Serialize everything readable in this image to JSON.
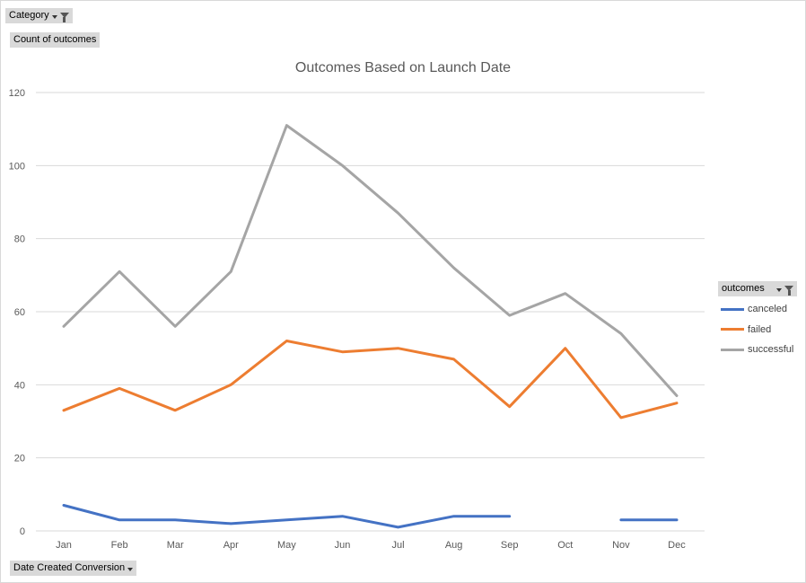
{
  "pivot_buttons": {
    "category": "Category",
    "count": "Count of outcomes",
    "date": "Date Created Conversion",
    "outcomes": "outcomes"
  },
  "chart_data": {
    "type": "line",
    "title": "Outcomes Based on Launch Date",
    "xlabel": "",
    "ylabel": "",
    "categories": [
      "Jan",
      "Feb",
      "Mar",
      "Apr",
      "May",
      "Jun",
      "Jul",
      "Aug",
      "Sep",
      "Oct",
      "Nov",
      "Dec"
    ],
    "ylim": [
      0,
      120
    ],
    "yticks": [
      0,
      20,
      40,
      60,
      80,
      100,
      120
    ],
    "grid": true,
    "legend_position": "right",
    "legend_title": "outcomes",
    "series": [
      {
        "name": "canceled",
        "color": "#4472c4",
        "values": [
          7,
          3,
          3,
          2,
          3,
          4,
          1,
          4,
          4,
          null,
          3,
          3
        ]
      },
      {
        "name": "failed",
        "color": "#ed7d31",
        "values": [
          33,
          39,
          33,
          40,
          52,
          49,
          50,
          47,
          34,
          50,
          31,
          35
        ]
      },
      {
        "name": "successful",
        "color": "#a5a5a5",
        "values": [
          56,
          71,
          56,
          71,
          111,
          100,
          87,
          72,
          59,
          65,
          54,
          37
        ]
      }
    ]
  }
}
